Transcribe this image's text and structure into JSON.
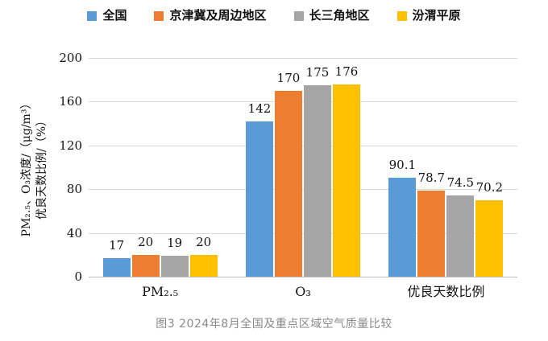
{
  "chart_data": {
    "type": "bar",
    "title": "",
    "categories": [
      "PM₂.₅",
      "O₃",
      "优良天数比例"
    ],
    "series": [
      {
        "name": "全国",
        "color": "#5B9BD5",
        "values": [
          17,
          142,
          90.1
        ],
        "labels": [
          "17",
          "142",
          "90.1"
        ]
      },
      {
        "name": "京津冀及周边地区",
        "color": "#ED7D31",
        "values": [
          20,
          170,
          78.7
        ],
        "labels": [
          "20",
          "170",
          "78.7"
        ]
      },
      {
        "name": "长三角地区",
        "color": "#A5A5A5",
        "values": [
          19,
          175,
          74.5
        ],
        "labels": [
          "19",
          "175",
          "74.5"
        ]
      },
      {
        "name": "汾渭平原",
        "color": "#FFC000",
        "values": [
          20,
          176,
          70.2
        ],
        "labels": [
          "20",
          "176",
          "70.2"
        ]
      }
    ],
    "ylabel_line1": "PM₂.₅、O₃浓度/（μg/m³）",
    "ylabel_line2": "优良天数比例/（%）",
    "ylim": [
      0,
      200
    ],
    "yticks": [
      0,
      40,
      80,
      120,
      160,
      200
    ],
    "grid": true,
    "legend_position": "top"
  },
  "caption": "图3  2024年8月全国及重点区域空气质量比较",
  "colors": {
    "gridline": "#D9D9D9",
    "axis_line": "#BFBFBF",
    "text": "#111111",
    "caption_text": "#8A8A8A"
  }
}
